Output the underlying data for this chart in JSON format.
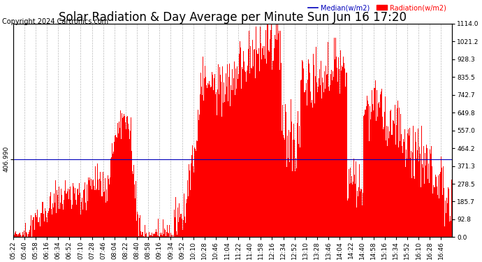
{
  "title": "Solar Radiation & Day Average per Minute Sun Jun 16 17:20",
  "copyright": "Copyright 2024 Cartronics.com",
  "legend_median": "Median(w/m2)",
  "legend_radiation": "Radiation(w/m2)",
  "y_left_label": "406.990",
  "median_value": 406.99,
  "y_right_ticks": [
    0.0,
    92.8,
    185.7,
    278.5,
    371.3,
    464.2,
    557.0,
    649.8,
    742.7,
    835.5,
    928.3,
    1021.2,
    1114.0
  ],
  "y_max": 1114.0,
  "y_min": 0.0,
  "bar_color": "#ff0000",
  "median_line_color": "#0000bb",
  "background_color": "#ffffff",
  "grid_color": "#bbbbbb",
  "title_fontsize": 12,
  "copyright_fontsize": 7,
  "tick_fontsize": 6.5
}
